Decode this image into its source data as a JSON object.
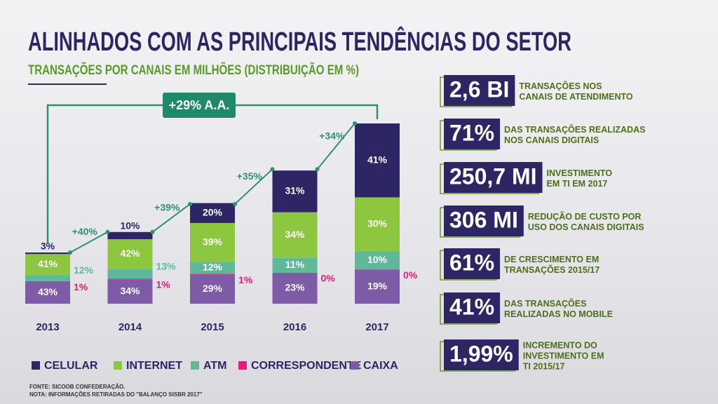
{
  "header": {
    "title": "ALINHADOS COM AS PRINCIPAIS TENDÊNCIAS DO SETOR",
    "subtitle": "TRANSAÇÕES POR CANAIS EM MILHÕES (DISTRIBUIÇÃO EM %)"
  },
  "chart_data": {
    "type": "stacked_bar",
    "categories": [
      "2013",
      "2014",
      "2015",
      "2016",
      "2017"
    ],
    "series": [
      {
        "name": "CELULAR",
        "color": "#2e2565",
        "values": [
          3,
          10,
          20,
          31,
          41
        ],
        "value_labels": [
          "3%",
          "10%",
          "20%",
          "31%",
          "41%"
        ]
      },
      {
        "name": "INTERNET",
        "color": "#8dc63f",
        "values": [
          41,
          42,
          39,
          34,
          30
        ],
        "value_labels": [
          "41%",
          "42%",
          "39%",
          "34%",
          "30%"
        ]
      },
      {
        "name": "ATM",
        "color": "#5fb89a",
        "values": [
          12,
          13,
          12,
          11,
          10
        ],
        "value_labels": [
          "12%",
          "13%",
          "12%",
          "11%",
          "10%"
        ]
      },
      {
        "name": "CORRESPONDENTE",
        "color": "#e0207a",
        "values": [
          1,
          1,
          1,
          0,
          0
        ],
        "value_labels": [
          "1%",
          "1%",
          "1%",
          "0%",
          "0%"
        ]
      },
      {
        "name": "CAIXA",
        "color": "#7d5ba6",
        "values": [
          43,
          34,
          29,
          23,
          19
        ],
        "value_labels": [
          "43%",
          "34%",
          "29%",
          "23%",
          "19%"
        ]
      }
    ],
    "growth": {
      "values": [
        null,
        40,
        39,
        35,
        34
      ],
      "value_labels": [
        null,
        "+40%",
        "+39%",
        "+35%",
        "+34%"
      ]
    },
    "annotation": "+29% A.A."
  },
  "stats": [
    {
      "value": "2,6 BI",
      "lines": [
        "TRANSAÇÕES NOS",
        "CANAIS DE ATENDIMENTO"
      ]
    },
    {
      "value": "71%",
      "lines": [
        "DAS TRANSAÇÕES REALIZADAS",
        "NOS CANAIS DIGITAIS"
      ]
    },
    {
      "value": "250,7 MI",
      "lines": [
        "INVESTIMENTO",
        "EM TI EM 2017"
      ]
    },
    {
      "value": "306 MI",
      "lines": [
        "REDUÇÃO DE CUSTO POR",
        "USO DOS CANAIS DIGITAIS"
      ]
    },
    {
      "value": "61%",
      "lines": [
        "DE CRESCIMENTO EM",
        "TRANSAÇÕES 2015/17"
      ]
    },
    {
      "value": "41%",
      "lines": [
        "DAS TRANSAÇÕES",
        "REALIZADAS NO MOBILE"
      ]
    },
    {
      "value": "1,99%",
      "lines": [
        "INCREMENTO DO",
        "INVESTIMENTO EM",
        "TI 2015/17"
      ]
    }
  ],
  "footnotes": [
    "FONTE: SICOOB CONFEDERAÇÃO.",
    "NOTA: INFORMAÇÕES RETIRADAS DO \"BALANÇO SISBR 2017\""
  ]
}
